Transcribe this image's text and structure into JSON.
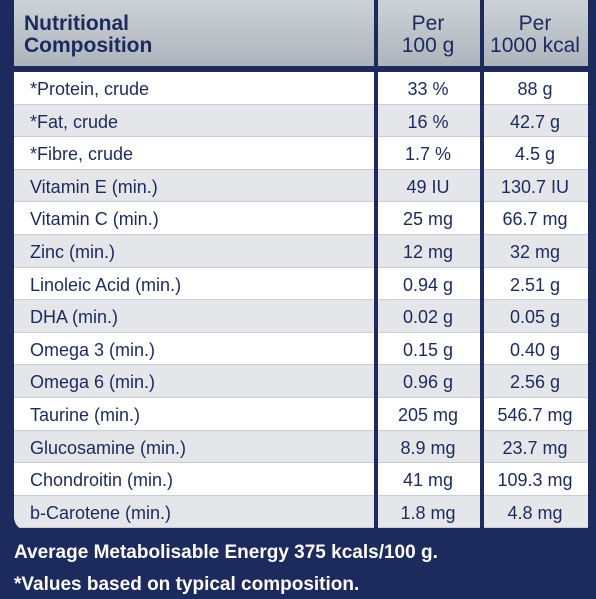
{
  "table": {
    "header": {
      "name_line1": "Nutritional",
      "name_line2": "Composition",
      "col2_line1": "Per",
      "col2_line2": "100 g",
      "col3_line1": "Per",
      "col3_line2": "1000 kcal"
    },
    "rows": [
      {
        "name": "*Protein, crude",
        "per100g": "33 %",
        "per1000kcal": "88 g"
      },
      {
        "name": "*Fat, crude",
        "per100g": "16 %",
        "per1000kcal": "42.7 g"
      },
      {
        "name": "*Fibre, crude",
        "per100g": "1.7 %",
        "per1000kcal": "4.5 g"
      },
      {
        "name": "Vitamin E (min.)",
        "per100g": "49 IU",
        "per1000kcal": "130.7 IU"
      },
      {
        "name": "Vitamin C (min.)",
        "per100g": "25 mg",
        "per1000kcal": "66.7 mg"
      },
      {
        "name": "Zinc (min.)",
        "per100g": "12 mg",
        "per1000kcal": "32 mg"
      },
      {
        "name": "Linoleic Acid (min.)",
        "per100g": "0.94 g",
        "per1000kcal": "2.51 g"
      },
      {
        "name": "DHA (min.)",
        "per100g": "0.02 g",
        "per1000kcal": "0.05 g"
      },
      {
        "name": "Omega 3 (min.)",
        "per100g": "0.15 g",
        "per1000kcal": "0.40 g"
      },
      {
        "name": "Omega 6 (min.)",
        "per100g": "0.96 g",
        "per1000kcal": "2.56 g"
      },
      {
        "name": "Taurine (min.)",
        "per100g": "205 mg",
        "per1000kcal": "546.7 mg"
      },
      {
        "name": "Glucosamine (min.)",
        "per100g": "8.9 mg",
        "per1000kcal": "23.7 mg"
      },
      {
        "name": "Chondroitin (min.)",
        "per100g": "41 mg",
        "per1000kcal": "109.3 mg"
      },
      {
        "name": "b-Carotene (min.)",
        "per100g": "1.8 mg",
        "per1000kcal": "4.8 mg"
      }
    ]
  },
  "footer": {
    "energy": "Average Metabolisable Energy 375 kcals/100 g.",
    "note": "*Values based on typical composition."
  },
  "colors": {
    "navy": "#1c2a5e",
    "header_grey": "#b8bec6",
    "row_alt": "#e4e6e9"
  }
}
